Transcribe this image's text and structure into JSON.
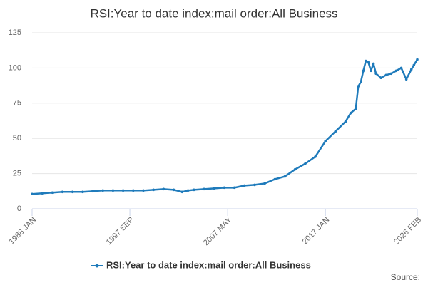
{
  "chart_data": {
    "type": "line",
    "title": "RSI:Year to date index:mail order:All Business",
    "x": [
      "1988-01",
      "1989-01",
      "1990-01",
      "1991-01",
      "1992-01",
      "1993-01",
      "1994-01",
      "1995-01",
      "1996-01",
      "1997-01",
      "1998-01",
      "1999-01",
      "2000-01",
      "2001-01",
      "2002-01",
      "2002-11",
      "2003-06",
      "2004-01",
      "2005-01",
      "2006-01",
      "2007-01",
      "2008-01",
      "2009-01",
      "2010-01",
      "2011-01",
      "2012-01",
      "2013-01",
      "2014-01",
      "2015-01",
      "2016-01",
      "2017-01",
      "2018-01",
      "2019-01",
      "2019-07",
      "2020-01",
      "2020-04",
      "2020-07",
      "2020-10",
      "2021-01",
      "2021-04",
      "2021-07",
      "2021-10",
      "2022-01",
      "2022-07",
      "2023-01",
      "2023-07",
      "2024-01",
      "2024-07",
      "2025-01",
      "2025-07",
      "2025-10",
      "2026-02"
    ],
    "series": [
      {
        "name": "RSI:Year to date index:mail order:All Business",
        "color": "#1f7bbb",
        "values": [
          10.5,
          11,
          11.5,
          12,
          12,
          12,
          12.5,
          13,
          13,
          13,
          13,
          13,
          13.5,
          14,
          13.5,
          12,
          13,
          13.5,
          14,
          14.5,
          15,
          15,
          16.5,
          17,
          18,
          21,
          23,
          28,
          32,
          37,
          48,
          55,
          62,
          68,
          71,
          87,
          90,
          98,
          105,
          104,
          98,
          103,
          96,
          93,
          95,
          96,
          98,
          100,
          92,
          99,
          102,
          106
        ]
      }
    ],
    "xlim": [
      "1988-01",
      "2026-02"
    ],
    "xticks": [
      {
        "value": "1988-01",
        "label": "1988 JAN"
      },
      {
        "value": "1997-09",
        "label": "1997 SEP"
      },
      {
        "value": "2007-05",
        "label": "2007 MAY"
      },
      {
        "value": "2017-01",
        "label": "2017 JAN"
      },
      {
        "value": "2026-02",
        "label": "2026 FEB"
      }
    ],
    "ylim": [
      0,
      125
    ],
    "yticks": [
      0,
      25,
      50,
      75,
      100,
      125
    ],
    "grid": true,
    "legend": "bottom",
    "source": "Source:"
  }
}
